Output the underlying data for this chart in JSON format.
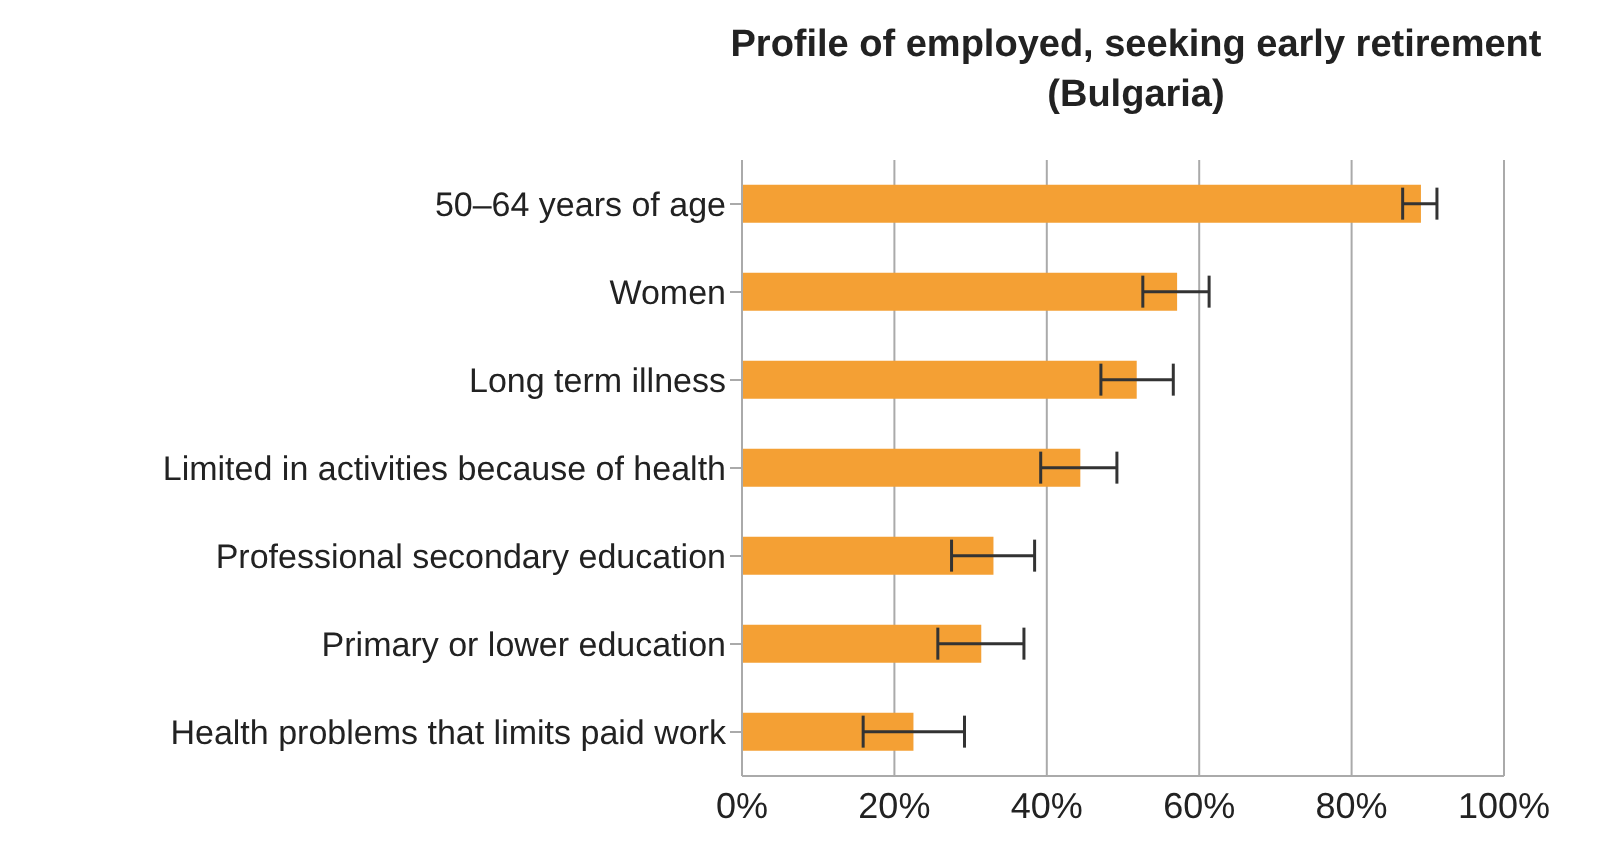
{
  "chart_data": {
    "type": "bar",
    "orientation": "horizontal",
    "title": "Profile of employed, seeking early retirement\n(Bulgaria)",
    "categories": [
      "50–64 years of age",
      "Women",
      "Long term illness",
      "Limited in activities because of health",
      "Professional secondary education",
      "Primary or lower education",
      "Health problems that limits paid work"
    ],
    "values": [
      89.1,
      57.1,
      51.8,
      44.4,
      33.0,
      31.4,
      22.5
    ],
    "errors": [
      [
        86.7,
        91.2
      ],
      [
        52.6,
        61.3
      ],
      [
        47.1,
        56.6
      ],
      [
        39.2,
        49.2
      ],
      [
        27.5,
        38.4
      ],
      [
        25.7,
        37.0
      ],
      [
        15.9,
        29.2
      ]
    ],
    "color": "#f4a034",
    "xlim": [
      0,
      100
    ],
    "xticks": [
      {
        "value": 0,
        "label": "0%"
      },
      {
        "value": 20,
        "label": "20%"
      },
      {
        "value": 40,
        "label": "40%"
      },
      {
        "value": 60,
        "label": "60%"
      },
      {
        "value": 80,
        "label": "80%"
      },
      {
        "value": 100,
        "label": "100%"
      }
    ],
    "grid": "x"
  }
}
